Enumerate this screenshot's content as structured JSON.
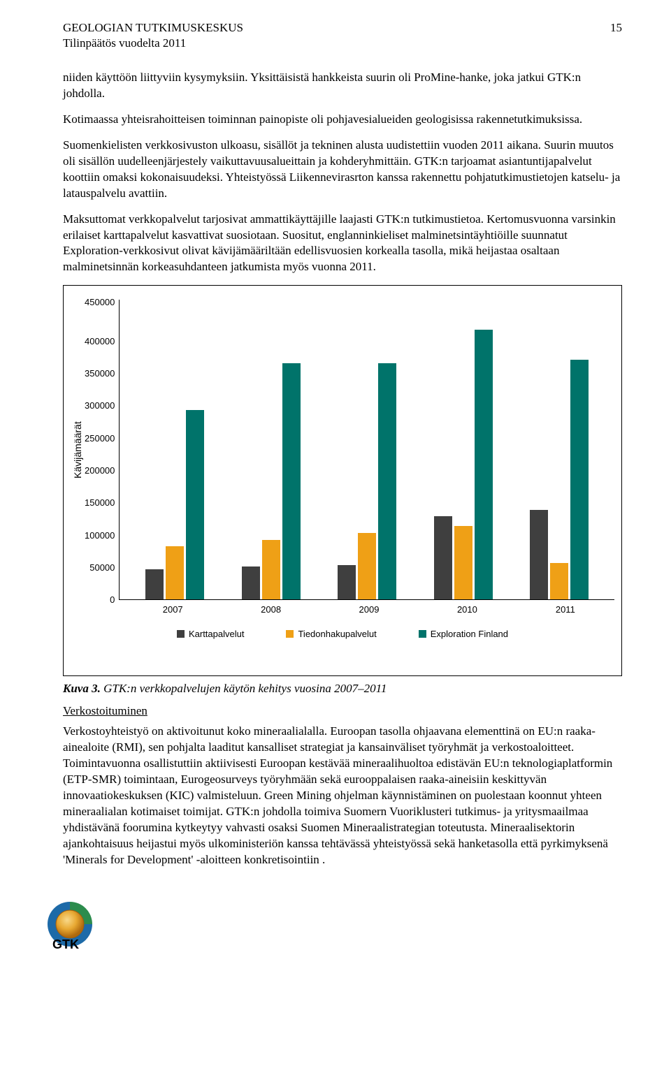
{
  "header": {
    "org": "GEOLOGIAN TUTKIMUSKESKUS",
    "pagenum": "15",
    "sub": "Tilinpäätös vuodelta 2011"
  },
  "paragraphs": {
    "p1": "niiden käyttöön liittyviin kysymyksiin. Yksittäisistä hankkeista suurin oli ProMine-hanke, joka jatkui GTK:n johdolla.",
    "p2": "Kotimaassa yhteisrahoitteisen toiminnan painopiste oli pohjavesialueiden geologisissa rakennetutkimuksissa.",
    "p3": "Suomenkielisten verkkosivuston ulkoasu, sisällöt ja tekninen alusta uudistettiin vuoden 2011 aikana. Suurin muutos oli sisällön uudelleenjärjestely vaikuttavuusalueittain ja kohderyhmittäin. GTK:n tarjoamat asiantuntijapalvelut koottiin omaksi kokonaisuudeksi. Yhteistyössä Liikennevirasrton kanssa rakennettu pohjatutkimustietojen katselu- ja latauspalvelu avattiin.",
    "p4": "Maksuttomat verkkopalvelut tarjosivat ammattikäyttäjille laajasti GTK:n tutkimustietoa. Kertomusvuonna varsinkin erilaiset karttapalvelut kasvattivat suosiotaan. Suositut, englanninkieliset malminetsintäyhtiöille suunnatut Exploration-verkkosivut olivat kävijämääriltään edellisvuosien korkealla tasolla, mikä heijastaa osaltaan malminetsinnän korkeasuhdanteen jatkumista myös vuonna 2011."
  },
  "chart": {
    "type": "bar",
    "ylabel": "Kävijämäärät",
    "ylim_max": 450000,
    "ytick_step": 50000,
    "yticks": [
      "450000",
      "400000",
      "350000",
      "300000",
      "250000",
      "200000",
      "150000",
      "100000",
      "50000",
      "0"
    ],
    "categories": [
      "2007",
      "2008",
      "2009",
      "2010",
      "2011"
    ],
    "series": [
      {
        "name": "Karttapalvelut",
        "color": "#3f3f3f",
        "values": [
          45000,
          50000,
          52000,
          125000,
          135000
        ]
      },
      {
        "name": "Tiedonhakupalvelut",
        "color": "#efa016",
        "values": [
          80000,
          90000,
          100000,
          110000,
          55000
        ]
      },
      {
        "name": "Exploration Finland",
        "color": "#00736a",
        "values": [
          285000,
          355000,
          355000,
          405000,
          360000
        ]
      }
    ]
  },
  "figure": {
    "label": "Kuva 3.",
    "caption": "GTK:n verkkopalvelujen käytön kehitys vuosina 2007–2011"
  },
  "section": {
    "heading": "Verkostoituminen",
    "body": "Verkostoyhteistyö on aktivoitunut koko mineraalialalla. Euroopan tasolla ohjaavana elementtinä on EU:n raaka-ainealoite (RMI), sen pohjalta laaditut kansalliset strategiat ja kansainväliset työryhmät ja verkostoaloitteet. Toimintavuonna osallistuttiin aktiivisesti Euroopan kestävää mineraalihuoltoa edistävän EU:n teknologiaplatformin (ETP-SMR) toimintaan, Eurogeosurveys työryhmään sekä eurooppalaisen raaka-aineisiin keskittyvän innovaatiokeskuksen (KIC) valmisteluun. Green Mining ohjelman käynnistäminen on puolestaan koonnut yhteen mineraalialan kotimaiset toimijat. GTK:n johdolla toimiva Suomern Vuoriklusteri tutkimus- ja yritysmaailmaa yhdistävänä foorumina kytkeytyy vahvasti osaksi Suomen Mineraalistrategian toteutusta. Mineraalisektorin ajankohtaisuus heijastui myös ulkoministeriön kanssa tehtävässä yhteistyössä sekä hanketasolla että pyrkimyksenä 'Minerals for Development' -aloitteen konkretisointiin ."
  }
}
